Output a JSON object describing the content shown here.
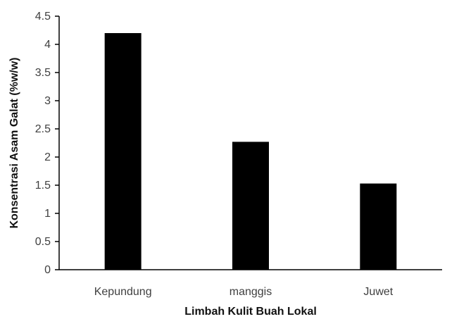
{
  "chart_data": {
    "type": "bar",
    "title": "",
    "xlabel": "Limbah Kulit Buah Lokal",
    "ylabel": "Konsentrasi Asam Galat (%w/w)",
    "categories": [
      "Kepundung",
      "manggis",
      "Juwet"
    ],
    "values": [
      4.2,
      2.27,
      1.53
    ],
    "ylim": [
      0,
      4.5
    ],
    "yticks": [
      "0",
      "0.5",
      "1",
      "1.5",
      "2",
      "2.5",
      "3",
      "3.5",
      "4",
      "4.5"
    ],
    "grid": false,
    "legend": "none",
    "bar_color": "#000000",
    "axis_color": "#000000"
  }
}
